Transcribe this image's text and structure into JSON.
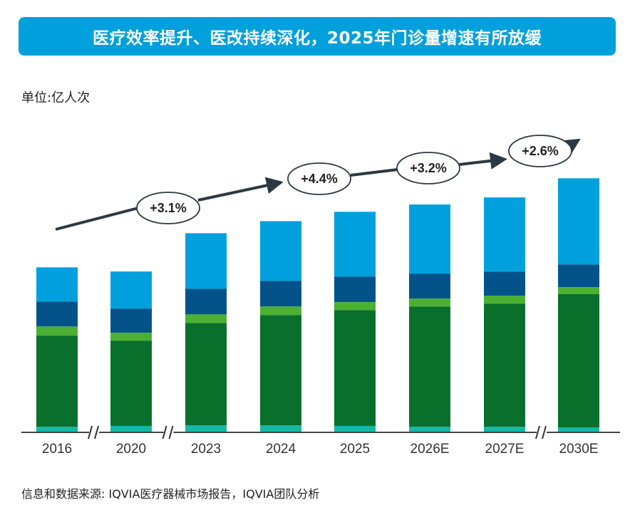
{
  "title": "医疗效率提升、医改持续深化，2025年门诊量增速有所放缓",
  "unit_label": "单位:亿人次",
  "source": "信息和数据来源: IQVIA医疗器械市场报告，IQVIA团队分析",
  "chart_data": {
    "type": "bar",
    "stacked": true,
    "title": "医疗效率提升、医改持续深化，2025年门诊量增速有所放缓",
    "ylabel": "单位:亿人次",
    "xlabel": "",
    "ylim": [
      0,
      140
    ],
    "grid": false,
    "legend": "none",
    "categories": [
      "2016",
      "2020",
      "2023",
      "2024",
      "2025",
      "2026E",
      "2027E",
      "2030E"
    ],
    "axis_breaks_after": [
      "2016",
      "2020",
      "2027E"
    ],
    "series": [
      {
        "color": "#14b8a6",
        "values": [
          2.7,
          3.1,
          3.4,
          3.4,
          3.1,
          2.7,
          2.7,
          2.4
        ]
      },
      {
        "color": "#08702a",
        "values": [
          43.8,
          41.0,
          49.2,
          53.0,
          55.7,
          57.8,
          59.2,
          64.0
        ]
      },
      {
        "color": "#4cb133",
        "values": [
          4.4,
          3.8,
          4.1,
          4.1,
          3.8,
          3.8,
          3.8,
          3.4
        ]
      },
      {
        "color": "#03538a",
        "values": [
          12.0,
          11.6,
          12.3,
          12.3,
          12.3,
          12.0,
          11.6,
          10.9
        ]
      },
      {
        "color": "#00a0df",
        "values": [
          16.4,
          17.8,
          26.7,
          28.7,
          31.1,
          33.2,
          35.6,
          41.4
        ]
      }
    ],
    "growth_annotations": [
      {
        "period": "2016-2023",
        "label": "+3.1%"
      },
      {
        "period": "2023-2024",
        "label": "+4.4%"
      },
      {
        "period": "2024-2027E",
        "label": "+3.2%"
      },
      {
        "period": "2027E-2030E",
        "label": "+2.6%"
      }
    ]
  }
}
